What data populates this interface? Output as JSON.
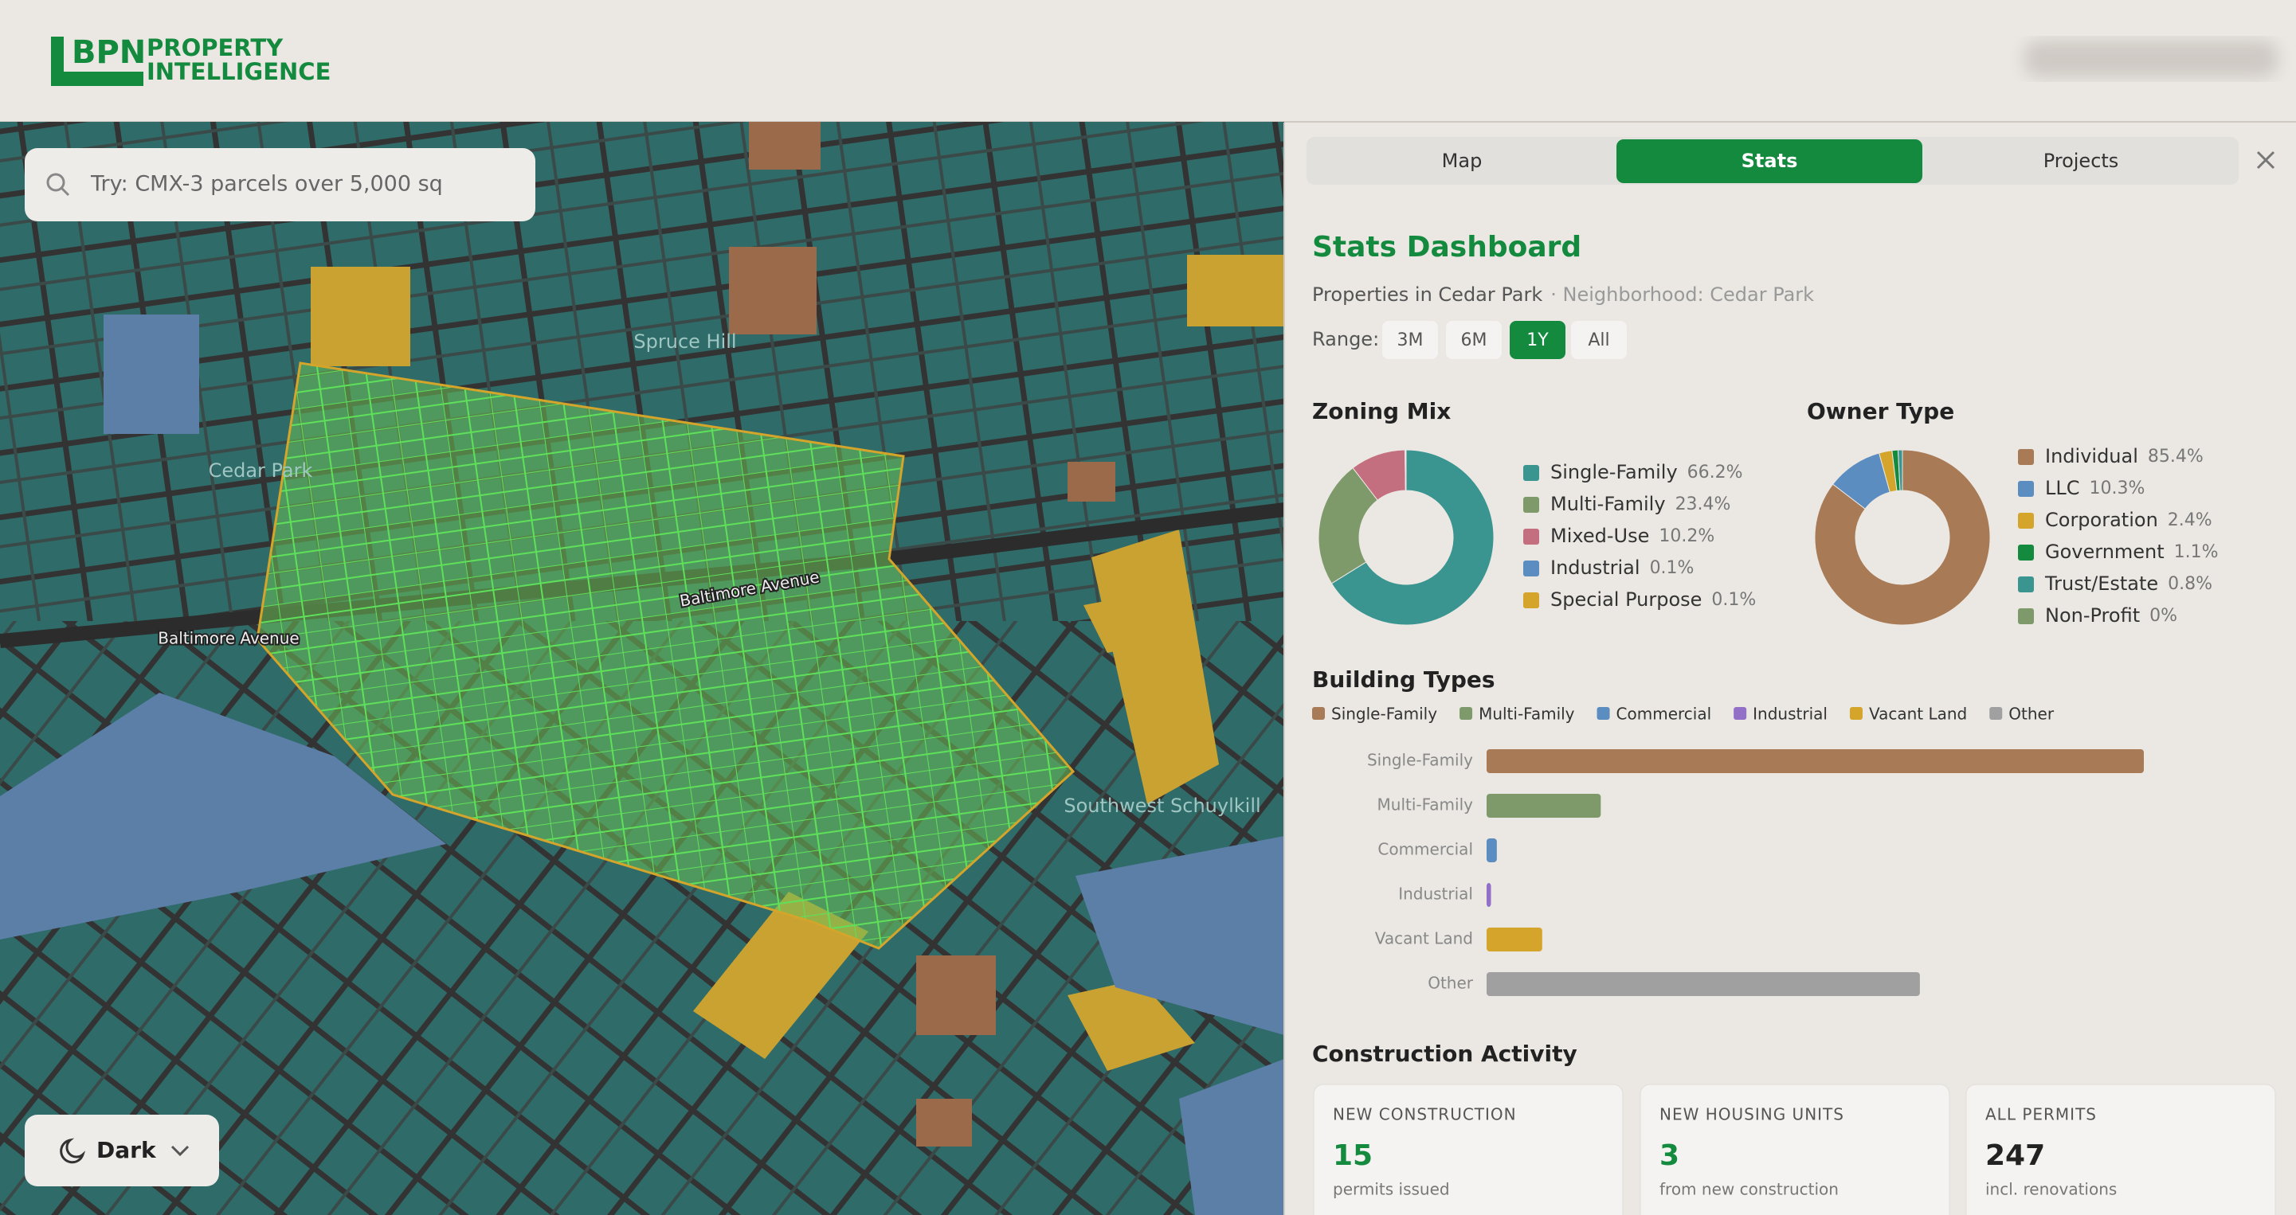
{
  "header": {
    "logo_mark": "BPN",
    "logo_line1": "PROPERTY",
    "logo_line2": "INTELLIGENCE"
  },
  "search": {
    "placeholder": "Try: CMX-3 parcels over 5,000 sq"
  },
  "map": {
    "labels": [
      "Spruce Hill",
      "Cedar Park",
      "Baltimore Avenue",
      "Baltimore Avenue",
      "Southwest Schuylkill"
    ]
  },
  "theme_toggle": "Dark",
  "tabs": [
    "Map",
    "Stats",
    "Projects"
  ],
  "active_tab_index": 1,
  "dashboard": {
    "title": "Stats Dashboard",
    "subtitle": "Properties in Cedar Park",
    "subtitle_note": "· Neighborhood: Cedar Park",
    "range_label": "Range:",
    "ranges": [
      "3M",
      "6M",
      "1Y",
      "All"
    ],
    "active_range_index": 2
  },
  "chart_data": [
    {
      "type": "pie",
      "donut": true,
      "title": "Zoning Mix",
      "categories": [
        "Single-Family",
        "Multi-Family",
        "Mixed-Use",
        "Industrial",
        "Special Purpose"
      ],
      "values": [
        66.2,
        23.4,
        10.2,
        0.1,
        0.1
      ],
      "value_labels": [
        "66.2%",
        "23.4%",
        "10.2%",
        "0.1%",
        "0.1%"
      ],
      "colors": [
        "#3a9490",
        "#7f9a6a",
        "#c46f7f",
        "#5b8dc0",
        "#d4a52a"
      ]
    },
    {
      "type": "pie",
      "donut": true,
      "title": "Owner Type",
      "categories": [
        "Individual",
        "LLC",
        "Corporation",
        "Government",
        "Trust/Estate",
        "Non-Profit"
      ],
      "values": [
        85.4,
        10.3,
        2.4,
        1.1,
        0.8,
        0
      ],
      "value_labels": [
        "85.4%",
        "10.3%",
        "2.4%",
        "1.1%",
        "0.8%",
        "0%"
      ],
      "colors": [
        "#a87a55",
        "#5b8dc0",
        "#d4a52a",
        "#138a3e",
        "#3a9490",
        "#7f9a6a"
      ]
    },
    {
      "type": "bar",
      "orientation": "horizontal",
      "title": "Building Types",
      "categories": [
        "Single-Family",
        "Multi-Family",
        "Commercial",
        "Industrial",
        "Vacant Land",
        "Other"
      ],
      "values": [
        449,
        78,
        7,
        3,
        38,
        296
      ],
      "colors": [
        "#a87a55",
        "#7f9a6a",
        "#5b8dc0",
        "#9370c8",
        "#d4a52a",
        "#a0a0a0"
      ]
    }
  ],
  "construction": {
    "title": "Construction Activity",
    "cards": [
      {
        "label": "NEW CONSTRUCTION",
        "value": 15,
        "note": "permits issued"
      },
      {
        "label": "NEW HOUSING UNITS",
        "value": 3,
        "note": "from new construction"
      },
      {
        "label": "ALL PERMITS",
        "value": 247,
        "note": "incl. renovations"
      }
    ]
  }
}
